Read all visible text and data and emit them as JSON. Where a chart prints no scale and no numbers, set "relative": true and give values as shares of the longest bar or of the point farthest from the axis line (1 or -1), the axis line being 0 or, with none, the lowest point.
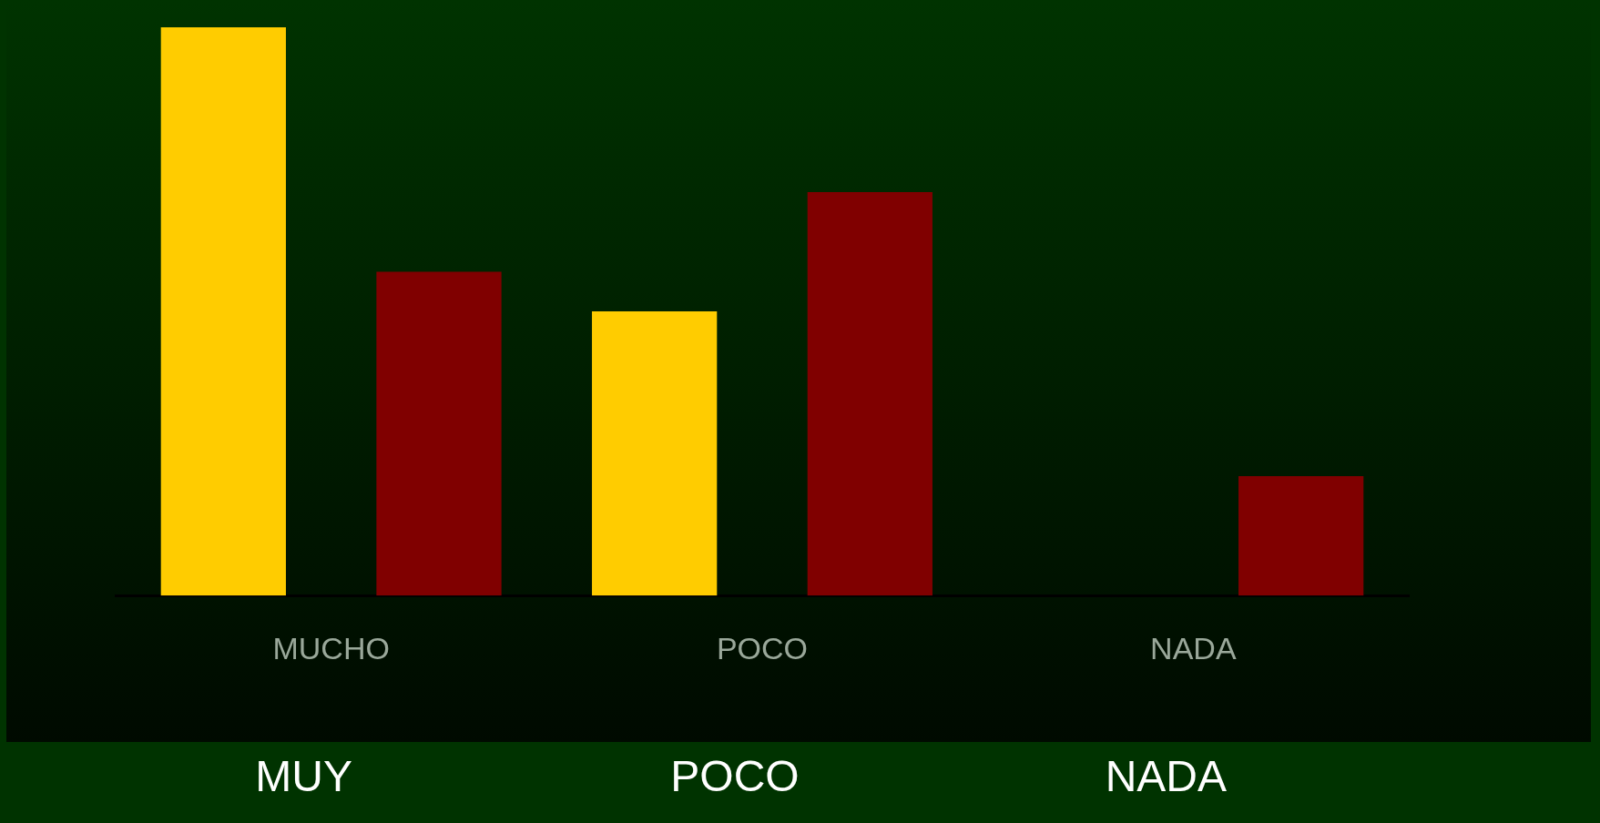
{
  "chart_data": {
    "type": "bar",
    "relative": true,
    "categories": [
      "MUCHO",
      "POCO",
      "NADA"
    ],
    "series": [
      {
        "color": "#ffcc00",
        "values": [
          1,
          0.5,
          0
        ]
      },
      {
        "color": "#800000",
        "values": [
          0.57,
          0.71,
          0.21
        ]
      }
    ],
    "grid": false,
    "legend": false,
    "annotations": [
      "MUY",
      "POCO",
      "NADA"
    ]
  }
}
